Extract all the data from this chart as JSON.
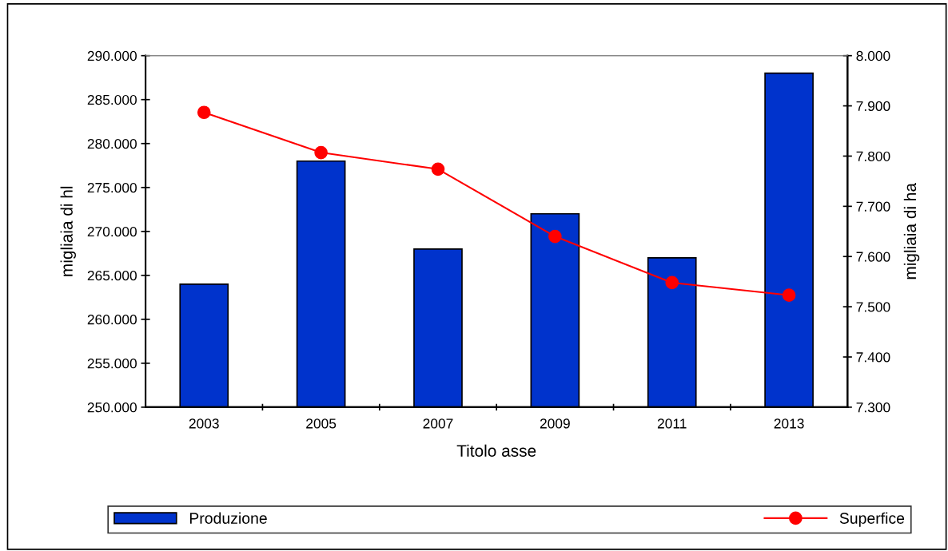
{
  "chart_data": {
    "type": "bar",
    "xlabel": "Titolo asse",
    "ylabel": "migliaia di hl",
    "y2label": "migliaia di ha",
    "categories": [
      "2003",
      "2005",
      "2007",
      "2009",
      "2011",
      "2013"
    ],
    "series": [
      {
        "name": "Produzione",
        "color": "#0033cc",
        "values": [
          264000,
          278000,
          268000,
          272000,
          267000,
          288000
        ]
      },
      {
        "name": "Superfice",
        "type": "line",
        "axis": "y2",
        "color": "#ff0000",
        "marker": "circle",
        "values": [
          7887,
          7807,
          7774,
          7640,
          7548,
          7523
        ]
      }
    ],
    "ylim": [
      250000,
      290000
    ],
    "yticks": [
      {
        "value": 250000,
        "label": "250.000"
      },
      {
        "value": 255000,
        "label": "255.000"
      },
      {
        "value": 260000,
        "label": "260.000"
      },
      {
        "value": 265000,
        "label": "265.000"
      },
      {
        "value": 270000,
        "label": "270.000"
      },
      {
        "value": 275000,
        "label": "275.000"
      },
      {
        "value": 280000,
        "label": "280.000"
      },
      {
        "value": 285000,
        "label": "285.000"
      },
      {
        "value": 290000,
        "label": "290.000"
      }
    ],
    "y2lim": [
      7300,
      8000
    ],
    "y2ticks": [
      {
        "value": 7300,
        "label": "7.300"
      },
      {
        "value": 7400,
        "label": "7.400"
      },
      {
        "value": 7500,
        "label": "7.500"
      },
      {
        "value": 7600,
        "label": "7.600"
      },
      {
        "value": 7700,
        "label": "7.700"
      },
      {
        "value": 7800,
        "label": "7.800"
      },
      {
        "value": 7900,
        "label": "7.900"
      },
      {
        "value": 8000,
        "label": "8.000"
      }
    ],
    "legend": "bottom",
    "grid": false
  }
}
